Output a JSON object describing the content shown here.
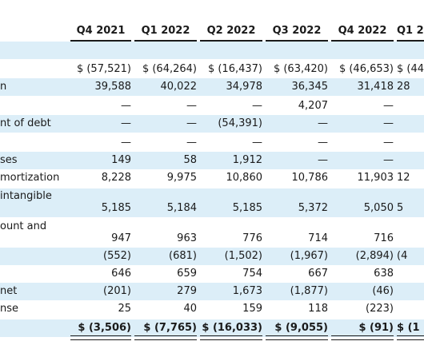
{
  "columns": [
    "Q4 2021",
    "Q1 2022",
    "Q2 2022",
    "Q3 2022",
    "Q4 2022",
    "Q1 2"
  ],
  "rows": [
    {
      "label": "",
      "cells": [
        "",
        "",
        "",
        "",
        "",
        ""
      ],
      "shade": true
    },
    {
      "label": "",
      "cells": [
        "$ (57,521)",
        "$ (64,264)",
        "$ (16,437)",
        "$ (63,420)",
        "$ (46,653)",
        "$ (44"
      ],
      "shade": false
    },
    {
      "label": "n",
      "cells": [
        "39,588",
        "40,022",
        "34,978",
        "36,345",
        "31,418",
        "28"
      ],
      "shade": true
    },
    {
      "label": "",
      "cells": [
        "—",
        "—",
        "—",
        "4,207",
        "—",
        ""
      ],
      "shade": false
    },
    {
      "label": "nt of debt",
      "cells": [
        "—",
        "—",
        "(54,391)",
        "—",
        "—",
        ""
      ],
      "shade": true
    },
    {
      "label": "",
      "cells": [
        "—",
        "—",
        "—",
        "—",
        "—",
        ""
      ],
      "shade": false
    },
    {
      "label": "ses",
      "cells": [
        "149",
        "58",
        "1,912",
        "—",
        "—",
        ""
      ],
      "shade": true
    },
    {
      "label": "mortization",
      "cells": [
        "8,228",
        "9,975",
        "10,860",
        "10,786",
        "11,903",
        "12"
      ],
      "shade": false
    },
    {
      "label": "intangible",
      "cells": [
        "5,185",
        "5,184",
        "5,185",
        "5,372",
        "5,050",
        "5"
      ],
      "shade": true
    },
    {
      "label": "ount and",
      "cells": [
        "947",
        "963",
        "776",
        "714",
        "716",
        ""
      ],
      "shade": false
    },
    {
      "label": "",
      "cells": [
        "(552)",
        "(681)",
        "(1,502)",
        "(1,967)",
        "(2,894)",
        "(4"
      ],
      "shade": true
    },
    {
      "label": "",
      "cells": [
        "646",
        "659",
        "754",
        "667",
        "638",
        ""
      ],
      "shade": false
    },
    {
      "label": "net",
      "cells": [
        "(201)",
        "279",
        "1,673",
        "(1,877)",
        "(46)",
        ""
      ],
      "shade": true
    },
    {
      "label": "nse",
      "cells": [
        "25",
        "40",
        "159",
        "118",
        "(223)",
        ""
      ],
      "shade": false
    },
    {
      "label": "",
      "cells": [
        "$ (3,506)",
        "$ (7,765)",
        "$ (16,033)",
        "$ (9,055)",
        "$ (91)",
        "$ (1"
      ],
      "shade": true,
      "total": true
    }
  ]
}
